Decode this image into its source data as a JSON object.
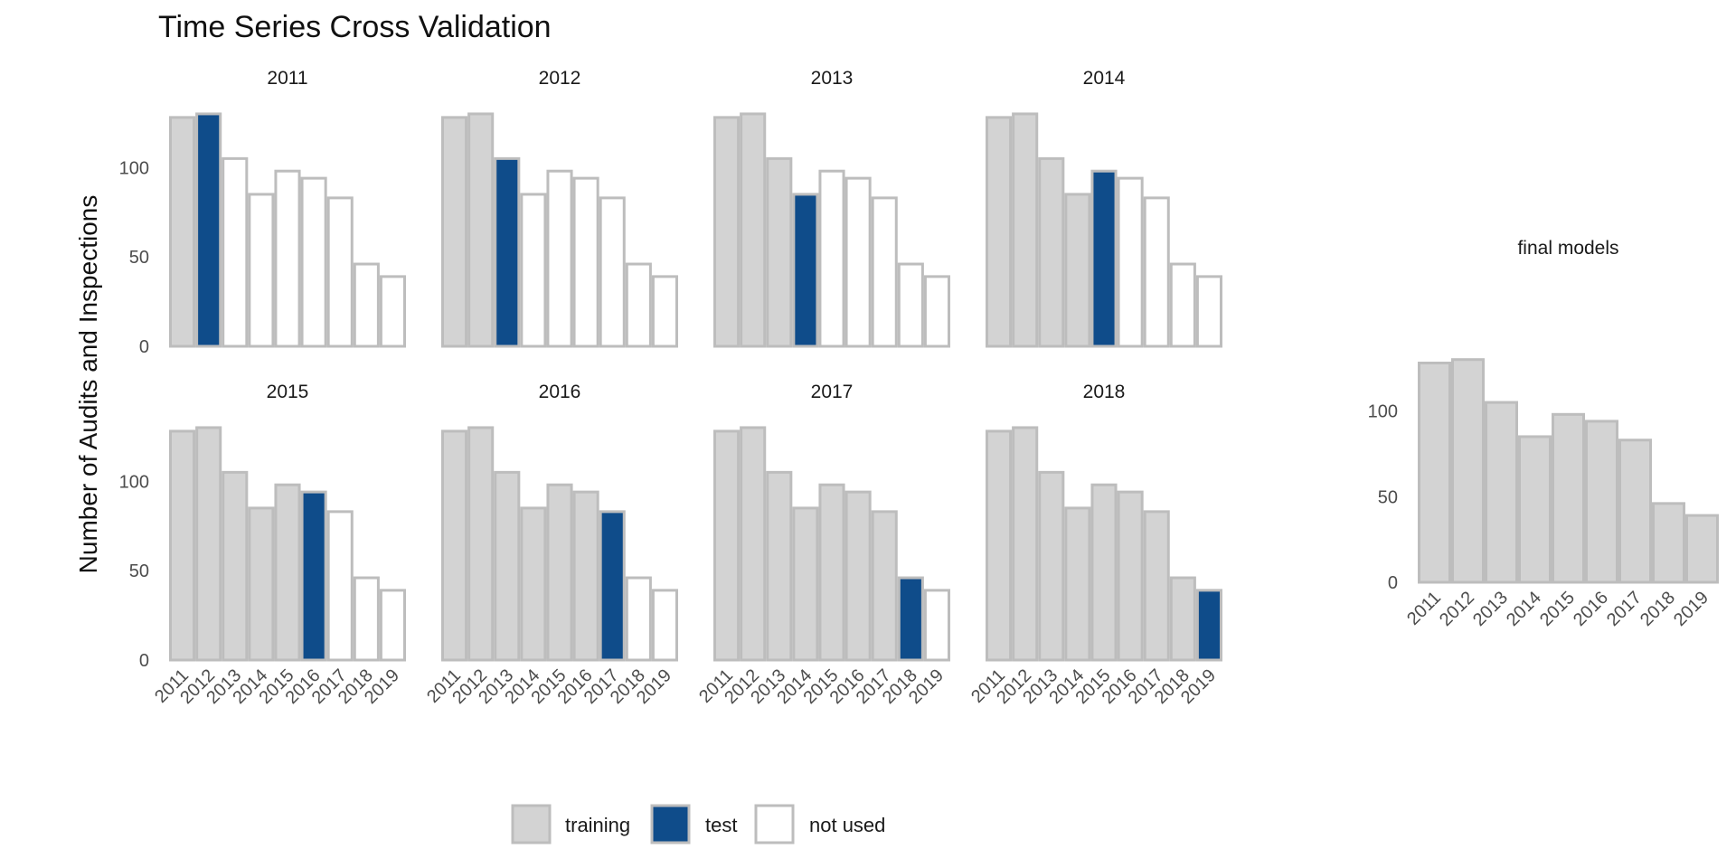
{
  "colors": {
    "training": "#d3d3d3",
    "test": "#0f4c8a",
    "not_used": "#ffffff",
    "outline": "#bdbdbd"
  },
  "chart_data": {
    "type": "bar",
    "title": "Time Series Cross Validation",
    "ylabel": "Number of Audits and Inspections",
    "xlabel": "",
    "categories": [
      "2011",
      "2012",
      "2013",
      "2014",
      "2015",
      "2016",
      "2017",
      "2018",
      "2019"
    ],
    "values": [
      128,
      130,
      105,
      85,
      98,
      94,
      83,
      46,
      39
    ],
    "ylim": [
      0,
      133
    ],
    "yticks": [
      "0",
      "50",
      "100"
    ],
    "grid": false,
    "panels": [
      {
        "label": "2011",
        "test_index": 1
      },
      {
        "label": "2012",
        "test_index": 2
      },
      {
        "label": "2013",
        "test_index": 3
      },
      {
        "label": "2014",
        "test_index": 4
      },
      {
        "label": "2015",
        "test_index": 5
      },
      {
        "label": "2016",
        "test_index": 6
      },
      {
        "label": "2017",
        "test_index": 7
      },
      {
        "label": "2018",
        "test_index": 8
      }
    ],
    "final_panel": {
      "label": "final models"
    },
    "legend": {
      "position": "bottom",
      "entries": [
        {
          "key": "training",
          "label": "training"
        },
        {
          "key": "test",
          "label": "test"
        },
        {
          "key": "not_used",
          "label": "not used"
        }
      ]
    }
  }
}
